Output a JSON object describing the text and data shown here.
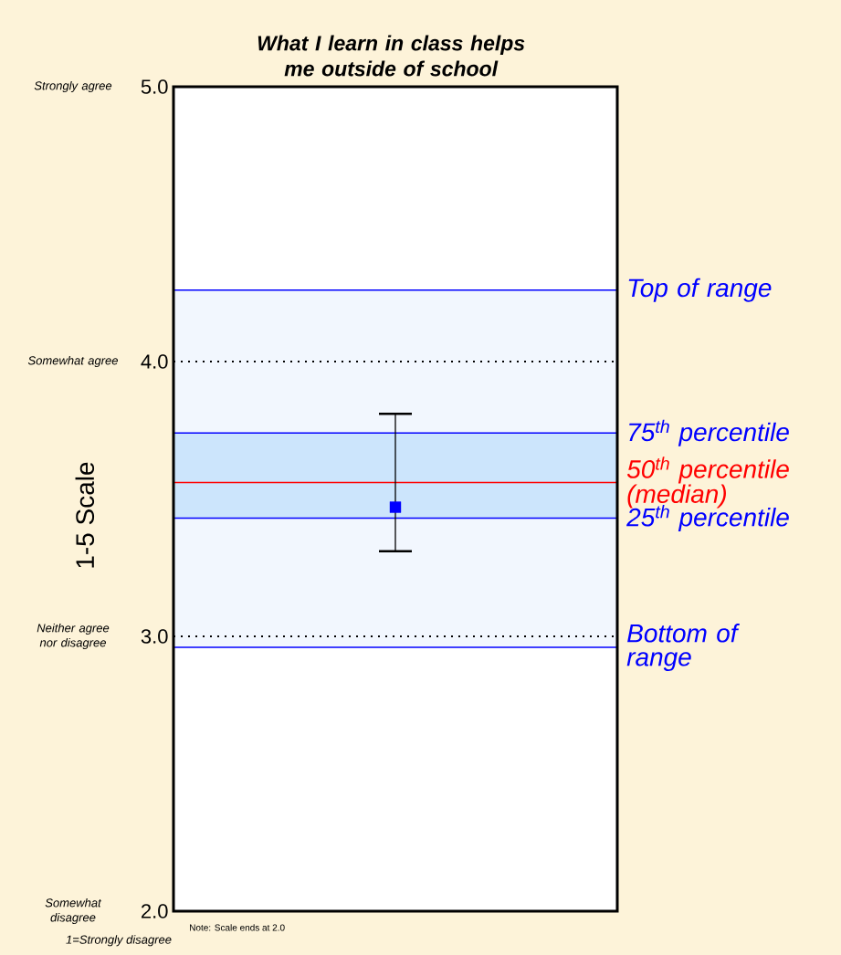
{
  "chart_data": {
    "type": "scatter",
    "title": "What I learn in class helps me outside of school",
    "ylabel": "1-5 Scale",
    "categories": [
      null
    ],
    "ylim": [
      2,
      5
    ],
    "yticks": [
      {
        "value": 2,
        "label": "2.0"
      },
      {
        "value": 3,
        "label": "3.0"
      },
      {
        "value": 4,
        "label": "4.0"
      },
      {
        "value": 5,
        "label": "5.0"
      }
    ],
    "grid": "y",
    "series": [
      {
        "color": "#0000ff",
        "marker": "square",
        "values": [
          3.47
        ],
        "errors": [
          [
            3.31,
            3.81
          ]
        ]
      }
    ],
    "bands": [
      {
        "axis": "y",
        "from": 2.96,
        "to": 4.26,
        "color": "#f2f7fe"
      },
      {
        "axis": "y",
        "from": 3.43,
        "to": 3.74,
        "color": "#cce5fc"
      }
    ],
    "ref_lines": [
      {
        "axis": "y",
        "value": 4.26,
        "label": "Top of range",
        "color": "#0000ff"
      },
      {
        "axis": "y",
        "value": 3.74,
        "label": "75$^{th}$ percentile",
        "color": "#0000ff"
      },
      {
        "axis": "y",
        "value": 3.56,
        "label": "50$^{th}$ percentile (median)",
        "color": "#ff0000"
      },
      {
        "axis": "y",
        "value": 3.43,
        "label": "25$^{th}$ percentile",
        "color": "#0000ff"
      },
      {
        "axis": "y",
        "value": 2.96,
        "label": "Bottom of range",
        "color": "#0000ff"
      }
    ],
    "annotations": [
      "Strongly agree",
      "Somewhat agree",
      "Neither agree nor disagree",
      "Somewhat disagree",
      "Note: Scale ends at 2.0",
      "1=Strongly disagree"
    ]
  }
}
